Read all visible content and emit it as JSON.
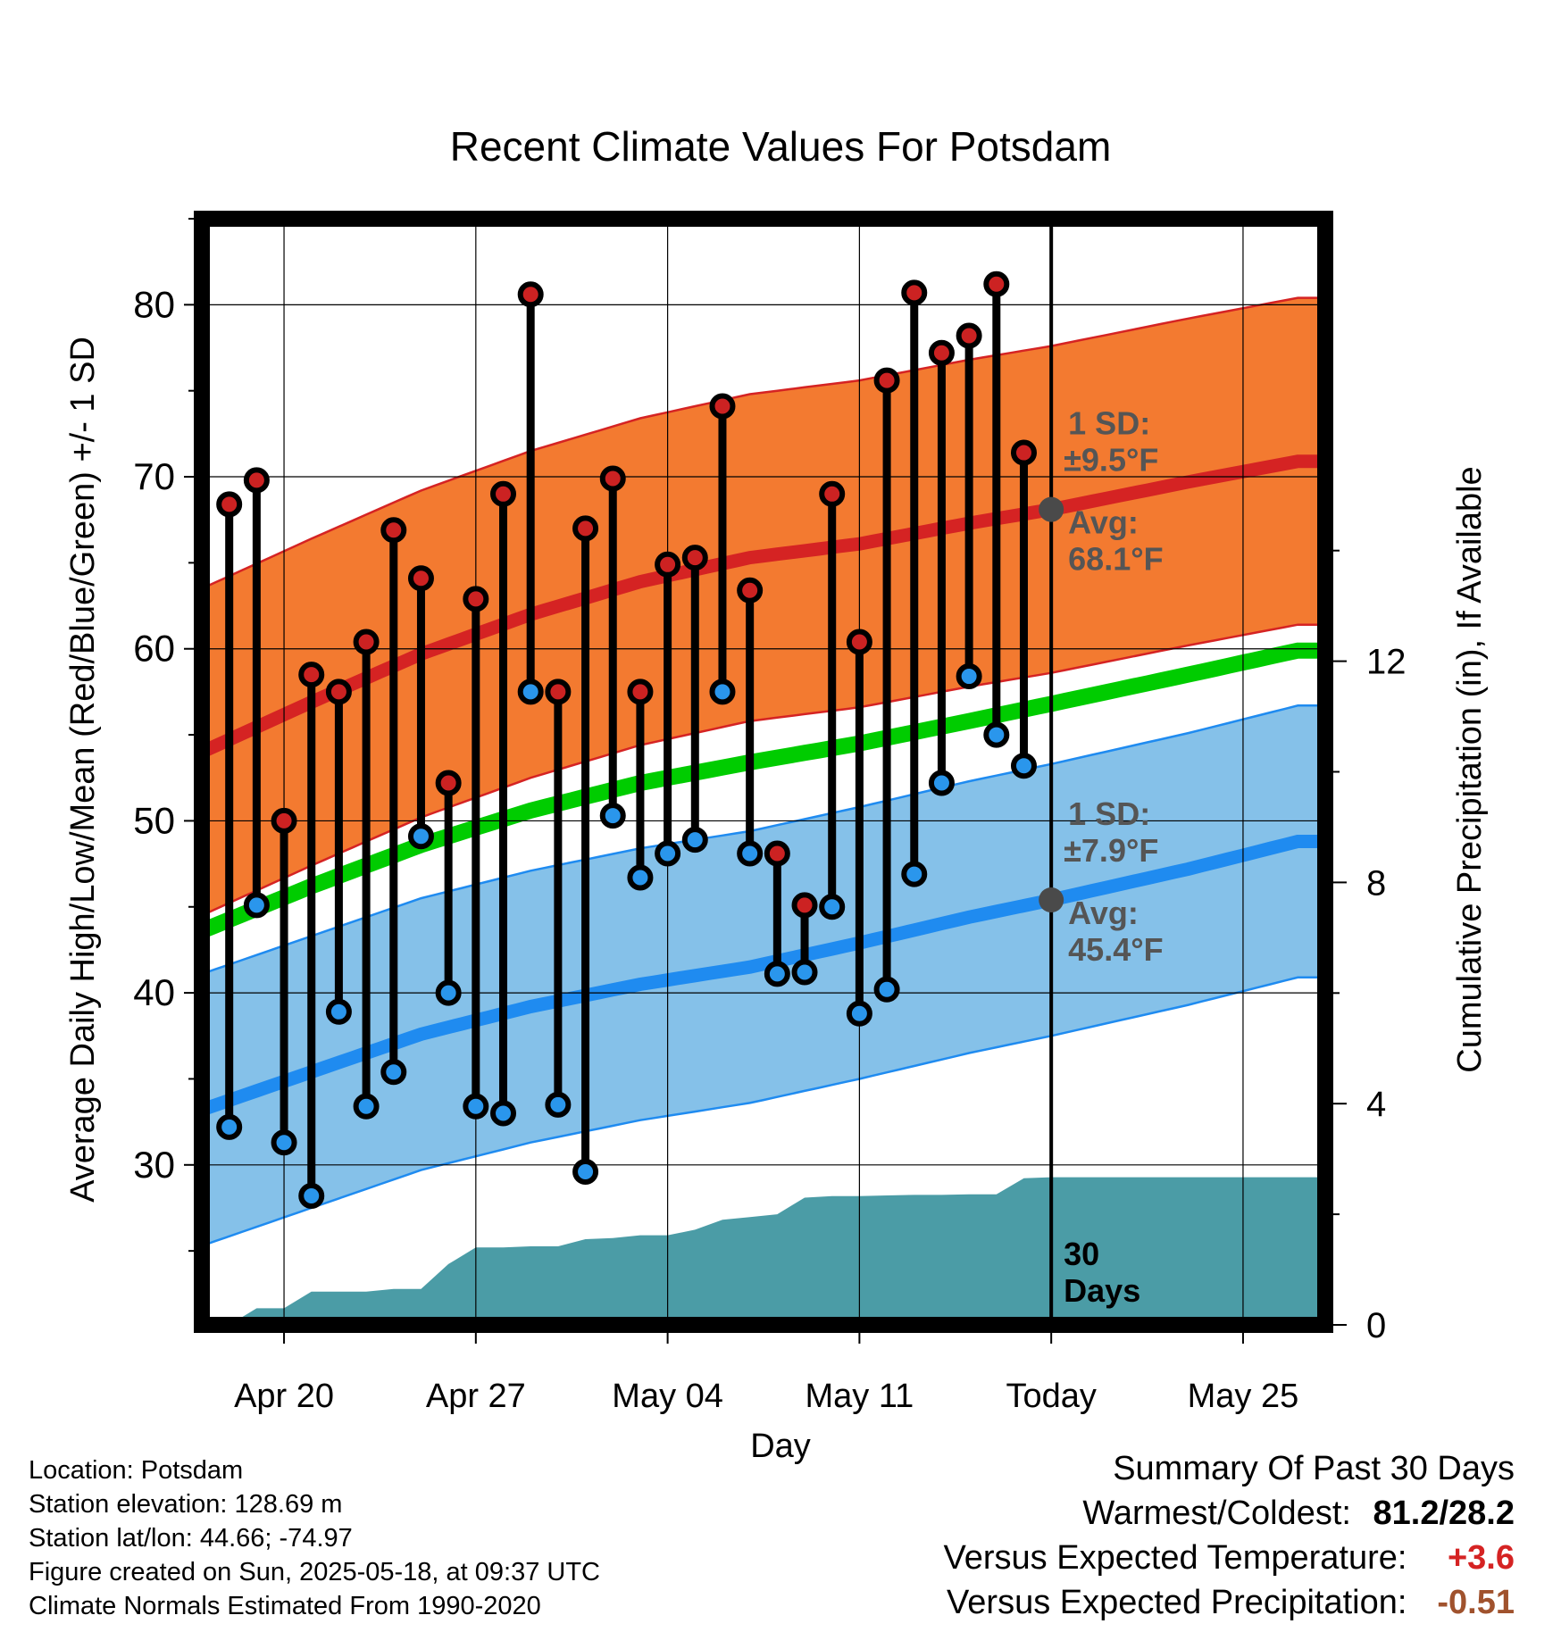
{
  "title": "Recent Climate Values For Potsdam",
  "chart_data": {
    "type": "line",
    "title": "Recent Climate Values For Potsdam",
    "xlabel": "Day",
    "ylabel": "Average Daily High/Low/Mean (Red/Blue/Green) +/- 1 SD",
    "y2label": "Cumulative Precipitation (in), If Available",
    "ylim": [
      20.7,
      85
    ],
    "y2lim": [
      0,
      20
    ],
    "xrange": [
      "2025-04-17",
      "2025-05-28"
    ],
    "x_ticks": [
      {
        "date": "2025-04-20",
        "label": "Apr 20"
      },
      {
        "date": "2025-04-27",
        "label": "Apr 27"
      },
      {
        "date": "2025-05-04",
        "label": "May 04"
      },
      {
        "date": "2025-05-11",
        "label": "May 11"
      },
      {
        "date": "2025-05-18",
        "label": "Today"
      },
      {
        "date": "2025-05-25",
        "label": "May 25"
      }
    ],
    "y_ticks": [
      "30",
      "40",
      "50",
      "60",
      "70",
      "80"
    ],
    "y2_ticks": [
      "0",
      "4",
      "8",
      "12"
    ],
    "grid": true,
    "today": "2025-05-18",
    "normals": {
      "dates": [
        "2025-04-17",
        "2025-04-21",
        "2025-04-25",
        "2025-04-29",
        "2025-05-03",
        "2025-05-07",
        "2025-05-11",
        "2025-05-15",
        "2025-05-18",
        "2025-05-23",
        "2025-05-27"
      ],
      "high_mean": [
        54.0,
        56.9,
        59.7,
        62.0,
        63.9,
        65.3,
        66.1,
        67.3,
        68.1,
        69.7,
        70.9
      ],
      "high_sd": 9.5,
      "low_mean": [
        33.2,
        35.4,
        37.6,
        39.2,
        40.5,
        41.5,
        42.9,
        44.4,
        45.4,
        47.2,
        48.8
      ],
      "low_sd": 7.9,
      "mean": [
        43.6,
        46.2,
        48.6,
        50.6,
        52.2,
        53.4,
        54.5,
        55.8,
        56.8,
        58.5,
        59.9
      ]
    },
    "series": [
      {
        "name": "High",
        "x": [
          "2025-04-18",
          "2025-04-19",
          "2025-04-20",
          "2025-04-21",
          "2025-04-22",
          "2025-04-23",
          "2025-04-24",
          "2025-04-25",
          "2025-04-26",
          "2025-04-27",
          "2025-04-28",
          "2025-04-29",
          "2025-04-30",
          "2025-05-01",
          "2025-05-02",
          "2025-05-03",
          "2025-05-04",
          "2025-05-05",
          "2025-05-06",
          "2025-05-07",
          "2025-05-08",
          "2025-05-09",
          "2025-05-10",
          "2025-05-11",
          "2025-05-12",
          "2025-05-13",
          "2025-05-14",
          "2025-05-15",
          "2025-05-16",
          "2025-05-17"
        ],
        "values": [
          68.4,
          69.8,
          50.0,
          58.5,
          57.5,
          60.4,
          66.9,
          64.1,
          52.2,
          62.9,
          69.0,
          80.6,
          57.5,
          67.0,
          69.9,
          57.5,
          64.9,
          65.3,
          74.1,
          63.4,
          48.1,
          45.1,
          69.0,
          60.4,
          75.6,
          80.7,
          77.2,
          78.2,
          81.2,
          71.4
        ]
      },
      {
        "name": "Low",
        "x": [
          "2025-04-18",
          "2025-04-19",
          "2025-04-20",
          "2025-04-21",
          "2025-04-22",
          "2025-04-23",
          "2025-04-24",
          "2025-04-25",
          "2025-04-26",
          "2025-04-27",
          "2025-04-28",
          "2025-04-29",
          "2025-04-30",
          "2025-05-01",
          "2025-05-02",
          "2025-05-03",
          "2025-05-04",
          "2025-05-05",
          "2025-05-06",
          "2025-05-07",
          "2025-05-08",
          "2025-05-09",
          "2025-05-10",
          "2025-05-11",
          "2025-05-12",
          "2025-05-13",
          "2025-05-14",
          "2025-05-15",
          "2025-05-16",
          "2025-05-17"
        ],
        "values": [
          32.2,
          45.1,
          31.3,
          28.2,
          38.9,
          33.4,
          35.4,
          49.1,
          40.0,
          33.4,
          33.0,
          57.5,
          33.5,
          29.6,
          50.3,
          46.7,
          48.1,
          48.9,
          57.5,
          48.1,
          41.1,
          41.2,
          45.0,
          38.8,
          40.2,
          46.9,
          52.2,
          58.4,
          55.0,
          53.2
        ]
      },
      {
        "name": "Cumulative Precipitation",
        "x": [
          "2025-04-17",
          "2025-04-18",
          "2025-04-19",
          "2025-04-20",
          "2025-04-21",
          "2025-04-22",
          "2025-04-23",
          "2025-04-24",
          "2025-04-25",
          "2025-04-26",
          "2025-04-27",
          "2025-04-28",
          "2025-04-29",
          "2025-04-30",
          "2025-05-01",
          "2025-05-02",
          "2025-05-03",
          "2025-05-04",
          "2025-05-05",
          "2025-05-06",
          "2025-05-07",
          "2025-05-08",
          "2025-05-09",
          "2025-05-10",
          "2025-05-11",
          "2025-05-12",
          "2025-05-13",
          "2025-05-14",
          "2025-05-15",
          "2025-05-16",
          "2025-05-17",
          "2025-05-18",
          "2025-05-28"
        ],
        "values": [
          0.0,
          0.0,
          0.3,
          0.3,
          0.6,
          0.6,
          0.6,
          0.65,
          0.65,
          1.1,
          1.4,
          1.4,
          1.42,
          1.42,
          1.55,
          1.57,
          1.62,
          1.62,
          1.72,
          1.9,
          1.95,
          2.0,
          2.3,
          2.33,
          2.33,
          2.34,
          2.35,
          2.35,
          2.36,
          2.36,
          2.65,
          2.67,
          2.67
        ]
      }
    ],
    "annotations": [
      {
        "target": "high",
        "sd_label": "1 SD:",
        "sd_value": "±9.5°F",
        "avg_label": "Avg:",
        "avg_value": "68.1°F",
        "avg": 68.1
      },
      {
        "target": "low",
        "sd_label": "1 SD:",
        "sd_value": "±7.9°F",
        "avg_label": "Avg:",
        "avg_value": "45.4°F",
        "avg": 45.4
      }
    ],
    "days_label": [
      "30",
      "Days"
    ],
    "colors": {
      "high_band": "#f37a30",
      "high_band_edge": "#d52323",
      "high_line": "#d52323",
      "low_band": "#85c1e9",
      "low_band_edge": "#1f8bf0",
      "low_line": "#1f8bf0",
      "mean_line": "#00cc00",
      "precip": "#4b9ca6",
      "high_dot": "#cc2222",
      "low_dot": "#2a96ec",
      "avg_dot": "#4a4a4a",
      "annotation_text": "#555555"
    }
  },
  "info": {
    "lines": [
      "Location: Potsdam",
      "Station elevation: 128.69 m",
      "Station lat/lon: 44.66; -74.97",
      "Figure created on Sun, 2025-05-18, at 09:37 UTC",
      "Climate Normals Estimated From 1990-2020"
    ]
  },
  "summary": {
    "title": "Summary Of Past 30 Days",
    "warm_cold_label": "Warmest/Coldest:",
    "warm_cold_value": "81.2/28.2",
    "temp_label": "Versus Expected Temperature:",
    "temp_value": "+3.6",
    "temp_color": "#d52323",
    "precip_label": "Versus Expected Precipitation:",
    "precip_value": "-0.51",
    "precip_color": "#a0522d"
  }
}
